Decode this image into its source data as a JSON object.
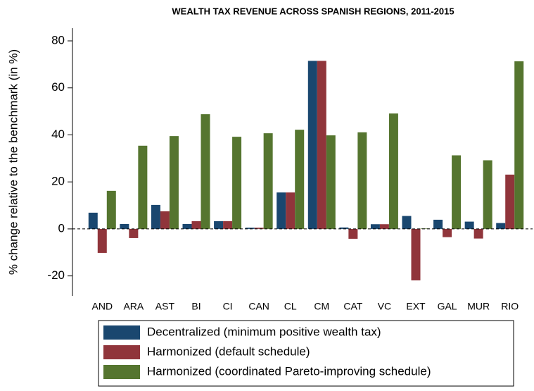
{
  "chart_data": {
    "type": "bar",
    "title": "WEALTH TAX REVENUE ACROSS SPANISH REGIONS, 2011-2015",
    "y_label": "% change relative to the benchmark (in %)",
    "categories": [
      "AND",
      "ARA",
      "AST",
      "BI",
      "CI",
      "CAN",
      "CL",
      "CM",
      "CAT",
      "VC",
      "EXT",
      "GAL",
      "MUR",
      "RIO"
    ],
    "series": [
      {
        "name": "Decentralized (minimum positive wealth tax)",
        "color": "#1a476f",
        "values": [
          6.9,
          2.1,
          10.2,
          2.1,
          3.3,
          0.5,
          15.5,
          71.5,
          0.6,
          2.0,
          5.5,
          3.9,
          3.1,
          2.5
        ]
      },
      {
        "name": "Harmonized (default schedule)",
        "color": "#90353b",
        "values": [
          -10.2,
          -3.9,
          7.5,
          3.3,
          3.3,
          0.5,
          15.5,
          71.5,
          -4.2,
          2.0,
          -21.9,
          -3.5,
          -4.1,
          23.1
        ]
      },
      {
        "name": "Harmonized (coordinated Pareto-improving schedule)",
        "color": "#55752f",
        "values": [
          16.2,
          35.4,
          39.5,
          48.8,
          39.2,
          40.7,
          42.2,
          39.8,
          41.1,
          49.1,
          0.2,
          31.3,
          29.2,
          71.3
        ]
      }
    ],
    "ylim": [
      -28.5,
      85.4
    ],
    "yticks": [
      -20,
      0,
      20,
      40,
      60,
      80
    ],
    "zero_line": "dashed",
    "legend": "bottom"
  }
}
